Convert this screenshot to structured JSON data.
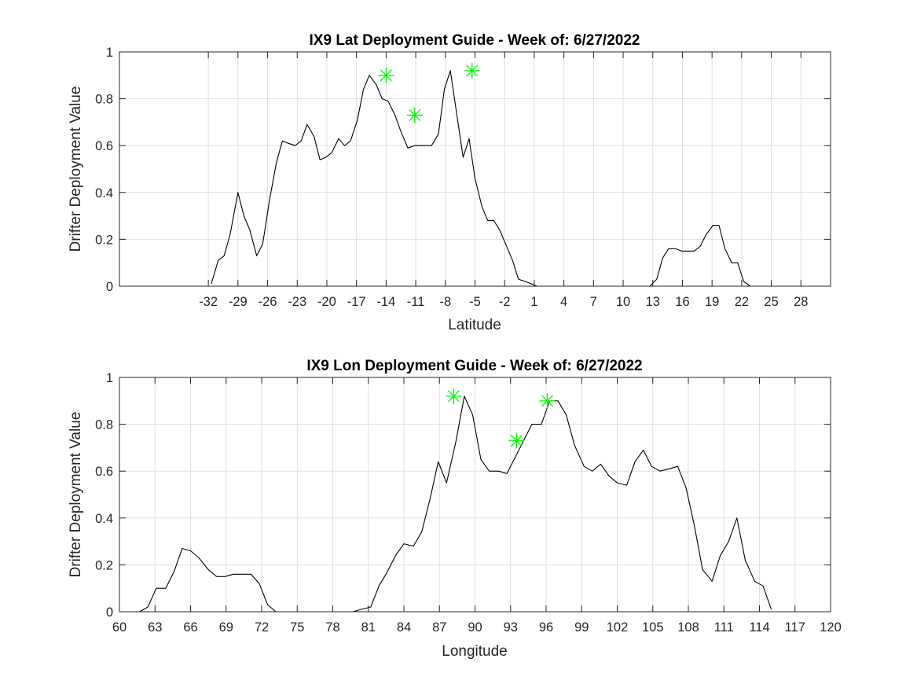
{
  "chart_data": [
    {
      "type": "line",
      "title": "IX9 Lat Deployment Guide - Week of: 6/27/2022",
      "xlabel": "Latitude",
      "ylabel": "Drifter Deployment Value",
      "xlim": [
        -41,
        31
      ],
      "ylim": [
        0,
        1
      ],
      "x_ticks": [
        -32,
        -29,
        -26,
        -23,
        -20,
        -17,
        -14,
        -11,
        -8,
        -5,
        -2,
        1,
        4,
        7,
        10,
        13,
        16,
        19,
        22,
        25,
        28
      ],
      "y_ticks": [
        0,
        0.2,
        0.4,
        0.6,
        0.8,
        1
      ],
      "grid": true,
      "line_color": "#000000",
      "series": [
        {
          "x": [
            -31.7,
            -31.0,
            -30.4,
            -29.8,
            -29.0,
            -28.4,
            -27.8,
            -27.1,
            -26.5,
            -25.8,
            -25.1,
            -24.5,
            -23.9,
            -23.2,
            -22.6,
            -22.0,
            -21.3,
            -20.7,
            -20.1,
            -19.5,
            -18.8,
            -18.2,
            -17.6,
            -16.9,
            -16.3,
            -15.7,
            -15.0,
            -14.4,
            -13.8,
            -13.1,
            -12.5,
            -11.8,
            -11.1,
            -10.6,
            -10.0,
            -9.4,
            -8.7,
            -8.1,
            -7.5,
            -6.8,
            -6.2,
            -5.6,
            -5.0,
            -4.3,
            -3.7,
            -3.1,
            -2.5,
            -1.8,
            -1.2,
            -0.6,
            0.1,
            0.7,
            1.3,
            2.0,
            2.6,
            3.2,
            3.9,
            4.5,
            5.1,
            5.8,
            6.4,
            7.0,
            7.7,
            8.3,
            8.9,
            9.6,
            10.2,
            10.8,
            11.5,
            12.1,
            12.7,
            13.4,
            14.0,
            14.6,
            15.3,
            15.9,
            16.5,
            17.2,
            17.8,
            18.4,
            19.1,
            19.7,
            20.3,
            21.0,
            21.6,
            22.2,
            22.9,
            23.5,
            24.1
          ],
          "y": [
            0.01,
            0.11,
            0.13,
            0.22,
            0.4,
            0.3,
            0.24,
            0.13,
            0.18,
            0.37,
            0.53,
            0.62,
            0.61,
            0.6,
            0.62,
            0.69,
            0.64,
            0.54,
            0.55,
            0.57,
            0.63,
            0.6,
            0.62,
            0.71,
            0.84,
            0.9,
            0.86,
            0.8,
            0.79,
            0.73,
            0.66,
            0.59,
            0.6,
            0.6,
            0.6,
            0.6,
            0.65,
            0.84,
            0.92,
            0.72,
            0.55,
            0.63,
            0.46,
            0.34,
            0.28,
            0.28,
            0.24,
            0.17,
            0.11,
            0.03,
            0.02,
            0.01,
            0.0,
            0.0,
            0.0,
            0.0,
            0.0,
            0.0,
            0.0,
            0.0,
            0.0,
            0.0,
            0.0,
            0.0,
            0.0,
            0.0,
            0.0,
            0.0,
            0.0,
            0.0,
            0.0,
            0.03,
            0.12,
            0.16,
            0.16,
            0.15,
            0.15,
            0.15,
            0.17,
            0.22,
            0.26,
            0.26,
            0.16,
            0.1,
            0.1,
            0.02,
            0.0,
            0.0,
            0.0
          ]
        }
      ],
      "markers": {
        "x": [
          -14.0,
          -11.1,
          -5.3
        ],
        "y": [
          0.9,
          0.73,
          0.92
        ],
        "color": "#00ff00",
        "symbol": "asterisk"
      }
    },
    {
      "type": "line",
      "title": "IX9 Lon Deployment Guide - Week of: 6/27/2022",
      "xlabel": "Longitude",
      "ylabel": "Drifter Deployment Value",
      "xlim": [
        60,
        120
      ],
      "ylim": [
        0,
        1
      ],
      "x_ticks": [
        60,
        63,
        66,
        69,
        72,
        75,
        78,
        81,
        84,
        87,
        90,
        93,
        96,
        99,
        102,
        105,
        108,
        111,
        114,
        117,
        120
      ],
      "y_ticks": [
        0,
        0.2,
        0.4,
        0.6,
        0.8,
        1
      ],
      "grid": true,
      "line_color": "#000000",
      "series": [
        {
          "x": [
            61.7,
            62.4,
            63.1,
            63.9,
            64.6,
            65.3,
            66.0,
            66.7,
            67.5,
            68.2,
            68.9,
            69.6,
            70.3,
            71.1,
            71.8,
            72.5,
            73.2,
            74.0,
            74.7,
            75.4,
            76.1,
            76.8,
            77.6,
            78.3,
            79.0,
            79.7,
            80.4,
            81.2,
            81.9,
            82.6,
            83.3,
            84.0,
            84.8,
            85.5,
            86.2,
            86.9,
            87.6,
            88.4,
            89.1,
            89.8,
            90.5,
            91.2,
            92.0,
            92.7,
            93.4,
            94.1,
            94.8,
            95.6,
            96.3,
            97.0,
            97.7,
            98.4,
            99.2,
            99.9,
            100.6,
            101.3,
            102.0,
            102.8,
            103.5,
            104.2,
            104.9,
            105.6,
            106.4,
            107.1,
            107.8,
            108.5,
            109.2,
            110.0,
            110.7,
            111.4,
            112.1,
            112.8,
            113.6,
            114.3,
            115.0
          ],
          "y": [
            0.0,
            0.02,
            0.1,
            0.1,
            0.17,
            0.27,
            0.26,
            0.23,
            0.18,
            0.15,
            0.15,
            0.16,
            0.16,
            0.16,
            0.12,
            0.03,
            0.0,
            0.0,
            0.0,
            0.0,
            0.0,
            0.0,
            0.0,
            0.0,
            0.0,
            0.0,
            0.01,
            0.02,
            0.11,
            0.17,
            0.24,
            0.29,
            0.28,
            0.34,
            0.48,
            0.64,
            0.55,
            0.73,
            0.92,
            0.84,
            0.65,
            0.6,
            0.6,
            0.59,
            0.66,
            0.73,
            0.8,
            0.8,
            0.9,
            0.9,
            0.84,
            0.71,
            0.62,
            0.6,
            0.63,
            0.58,
            0.55,
            0.54,
            0.64,
            0.69,
            0.62,
            0.6,
            0.61,
            0.62,
            0.53,
            0.37,
            0.18,
            0.13,
            0.24,
            0.3,
            0.4,
            0.22,
            0.13,
            0.11,
            0.01
          ]
        }
      ],
      "markers": {
        "x": [
          88.2,
          93.5,
          96.1
        ],
        "y": [
          0.92,
          0.73,
          0.9
        ],
        "color": "#00ff00",
        "symbol": "asterisk"
      }
    }
  ]
}
